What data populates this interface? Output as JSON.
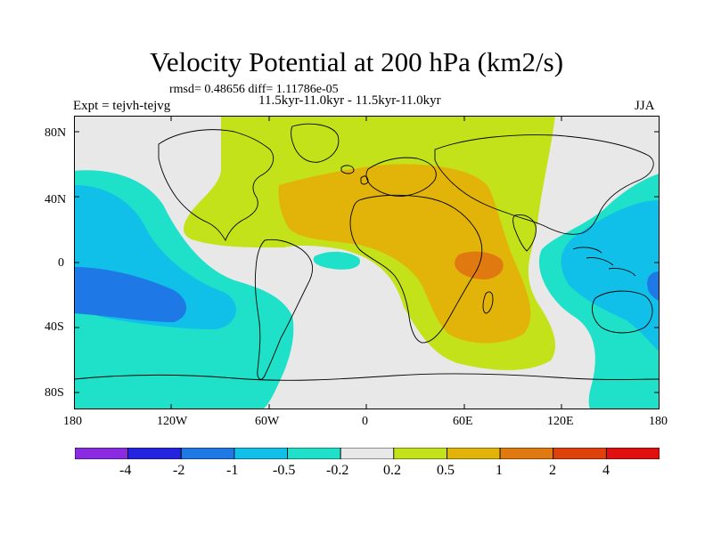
{
  "header": {
    "title": "Velocity Potential at 200 hPa (km2/s)",
    "stats": "rmsd= 0.48656 diff= 1.11786e-05",
    "left_label": "Expt = tejvh-tejvg",
    "center_label": "11.5kyr-11.0kyr - 11.5kyr-11.0kyr",
    "right_label": "JJA"
  },
  "axes": {
    "lat_ticks": [
      "80N",
      "40N",
      "0",
      "40S",
      "80S"
    ],
    "lon_ticks": [
      "180",
      "120W",
      "60W",
      "0",
      "60E",
      "120E",
      "180"
    ]
  },
  "colorbar": {
    "colors": [
      "#8a2be2",
      "#2424e0",
      "#1e78e6",
      "#10c0e8",
      "#1fe0c8",
      "#e8e8e8",
      "#c4e21a",
      "#e2b40a",
      "#e07a10",
      "#e0400a",
      "#e01010"
    ],
    "labels": [
      "-4",
      "-2",
      "-1",
      "-0.5",
      "-0.2",
      "0.2",
      "0.5",
      "1",
      "2",
      "4"
    ]
  },
  "colors": {
    "neutral": "#e8e8e8",
    "pos_02": "#c4e21a",
    "pos_05": "#e2b40a",
    "pos_1": "#e07a10",
    "neg_02": "#1fe0c8",
    "neg_05": "#10c0e8",
    "neg_1": "#1e78e6"
  }
}
